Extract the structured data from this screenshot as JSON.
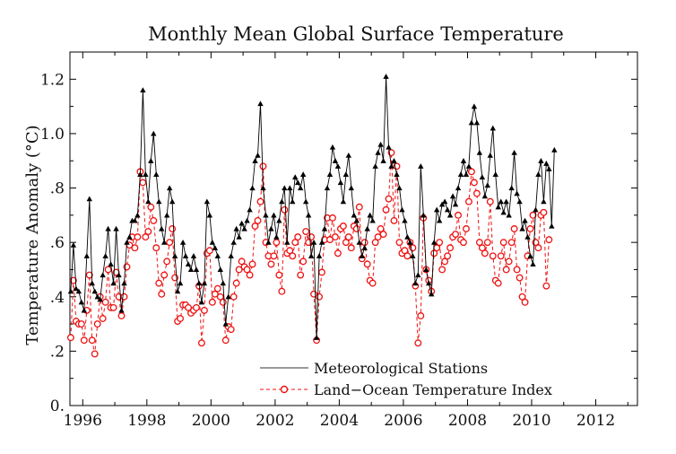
{
  "chart_data": {
    "type": "line",
    "title": "Monthly Mean Global Surface Temperature",
    "xlabel": "",
    "ylabel": "Temperature Anomaly (°C)",
    "xlim": [
      1995.6,
      2013.3
    ],
    "ylim": [
      0.0,
      1.3
    ],
    "x_ticks": [
      1996,
      1998,
      2000,
      2002,
      2004,
      2006,
      2008,
      2010,
      2012
    ],
    "x_tick_labels": [
      "1996",
      "1998",
      "2000",
      "2002",
      "2004",
      "2006",
      "2008",
      "2010",
      "2012"
    ],
    "y_ticks": [
      0.0,
      0.2,
      0.4,
      0.6,
      0.8,
      1.0,
      1.2
    ],
    "y_tick_labels": [
      "0.",
      ".2",
      ".4",
      ".6",
      ".8",
      "1.0",
      "1.2"
    ],
    "grid": false,
    "legend_position": "bottom-center",
    "x_start": 1995.625,
    "x_step": 0.0833333,
    "series": [
      {
        "name": "Meteorological Stations",
        "color": "#000000",
        "style": "solid line with triangle markers",
        "values": [
          0.42,
          0.59,
          0.43,
          0.42,
          0.38,
          0.35,
          0.55,
          0.76,
          0.45,
          0.42,
          0.4,
          0.39,
          0.48,
          0.55,
          0.65,
          0.52,
          0.45,
          0.65,
          0.48,
          0.35,
          0.45,
          0.6,
          0.62,
          0.68,
          0.68,
          0.7,
          0.85,
          1.16,
          0.85,
          0.75,
          0.9,
          1.0,
          0.85,
          0.75,
          0.65,
          0.6,
          0.7,
          0.8,
          0.75,
          0.55,
          0.42,
          0.45,
          0.6,
          0.55,
          0.52,
          0.5,
          0.55,
          0.5,
          0.45,
          0.38,
          0.45,
          0.75,
          0.7,
          0.6,
          0.58,
          0.55,
          0.5,
          0.45,
          0.3,
          0.4,
          0.55,
          0.6,
          0.65,
          0.62,
          0.67,
          0.65,
          0.68,
          0.72,
          0.8,
          0.9,
          0.92,
          1.11,
          0.8,
          0.7,
          0.6,
          0.65,
          0.7,
          0.62,
          0.68,
          0.75,
          0.8,
          0.6,
          0.8,
          0.75,
          0.84,
          0.82,
          0.8,
          0.85,
          0.75,
          0.7,
          0.55,
          0.6,
          0.25,
          0.55,
          0.6,
          0.65,
          0.8,
          0.85,
          0.95,
          0.9,
          0.88,
          0.82,
          0.75,
          0.85,
          0.92,
          0.8,
          0.7,
          0.68,
          0.6,
          0.55,
          0.58,
          0.65,
          0.7,
          0.68,
          0.88,
          0.93,
          0.96,
          0.9,
          1.21,
          0.95,
          0.88,
          0.9,
          0.85,
          0.8,
          0.72,
          0.68,
          0.62,
          0.6,
          0.55,
          0.45,
          0.48,
          0.88,
          0.7,
          0.5,
          0.45,
          0.41,
          0.6,
          0.72,
          0.68,
          0.74,
          0.75,
          0.72,
          0.7,
          0.77,
          0.74,
          0.8,
          0.85,
          0.9,
          0.85,
          0.88,
          1.04,
          1.1,
          1.04,
          0.93,
          0.84,
          0.77,
          0.81,
          0.92,
          1.02,
          0.85,
          0.73,
          0.75,
          0.71,
          0.75,
          0.7,
          0.8,
          0.93,
          0.78,
          0.75,
          0.65,
          0.68,
          0.62,
          0.55,
          0.52,
          0.72,
          0.85,
          0.9,
          0.75,
          0.89,
          0.87,
          0.66,
          0.94
        ]
      },
      {
        "name": "Land−Ocean Temperature Index",
        "color": "#ee1111",
        "style": "dashed line with open circle markers",
        "values": [
          0.25,
          0.46,
          0.31,
          0.3,
          0.3,
          0.24,
          0.35,
          0.48,
          0.24,
          0.19,
          0.3,
          0.4,
          0.32,
          0.38,
          0.5,
          0.36,
          0.36,
          0.49,
          0.4,
          0.33,
          0.4,
          0.51,
          0.59,
          0.62,
          0.58,
          0.62,
          0.86,
          0.82,
          0.62,
          0.64,
          0.73,
          0.68,
          0.58,
          0.45,
          0.41,
          0.48,
          0.53,
          0.6,
          0.65,
          0.47,
          0.31,
          0.32,
          0.37,
          0.37,
          0.36,
          0.34,
          0.35,
          0.36,
          0.44,
          0.23,
          0.35,
          0.56,
          0.57,
          0.38,
          0.41,
          0.43,
          0.4,
          0.38,
          0.24,
          0.29,
          0.28,
          0.4,
          0.45,
          0.5,
          0.53,
          0.51,
          0.5,
          0.48,
          0.52,
          0.66,
          0.68,
          0.75,
          0.88,
          0.6,
          0.55,
          0.52,
          0.55,
          0.6,
          0.48,
          0.42,
          0.72,
          0.56,
          0.57,
          0.55,
          0.6,
          0.62,
          0.48,
          0.53,
          0.64,
          0.6,
          0.62,
          0.41,
          0.24,
          0.4,
          0.49,
          0.61,
          0.69,
          0.61,
          0.69,
          0.62,
          0.56,
          0.65,
          0.66,
          0.6,
          0.62,
          0.58,
          0.66,
          0.65,
          0.73,
          0.54,
          0.6,
          0.52,
          0.46,
          0.45,
          0.6,
          0.62,
          0.65,
          0.63,
          0.72,
          0.76,
          0.93,
          0.68,
          0.88,
          0.6,
          0.56,
          0.57,
          0.55,
          0.6,
          0.58,
          0.44,
          0.23,
          0.33,
          0.69,
          0.5,
          0.46,
          0.42,
          0.56,
          0.58,
          0.6,
          0.5,
          0.53,
          0.55,
          0.58,
          0.62,
          0.63,
          0.7,
          0.61,
          0.6,
          0.65,
          0.75,
          0.86,
          0.82,
          0.78,
          0.6,
          0.58,
          0.56,
          0.6,
          0.75,
          0.55,
          0.46,
          0.45,
          0.55,
          0.6,
          0.5,
          0.53,
          0.6,
          0.65,
          0.5,
          0.47,
          0.4,
          0.38,
          0.55,
          0.65,
          0.7,
          0.6,
          0.58,
          0.7,
          0.71,
          0.44,
          0.61
        ]
      }
    ]
  }
}
